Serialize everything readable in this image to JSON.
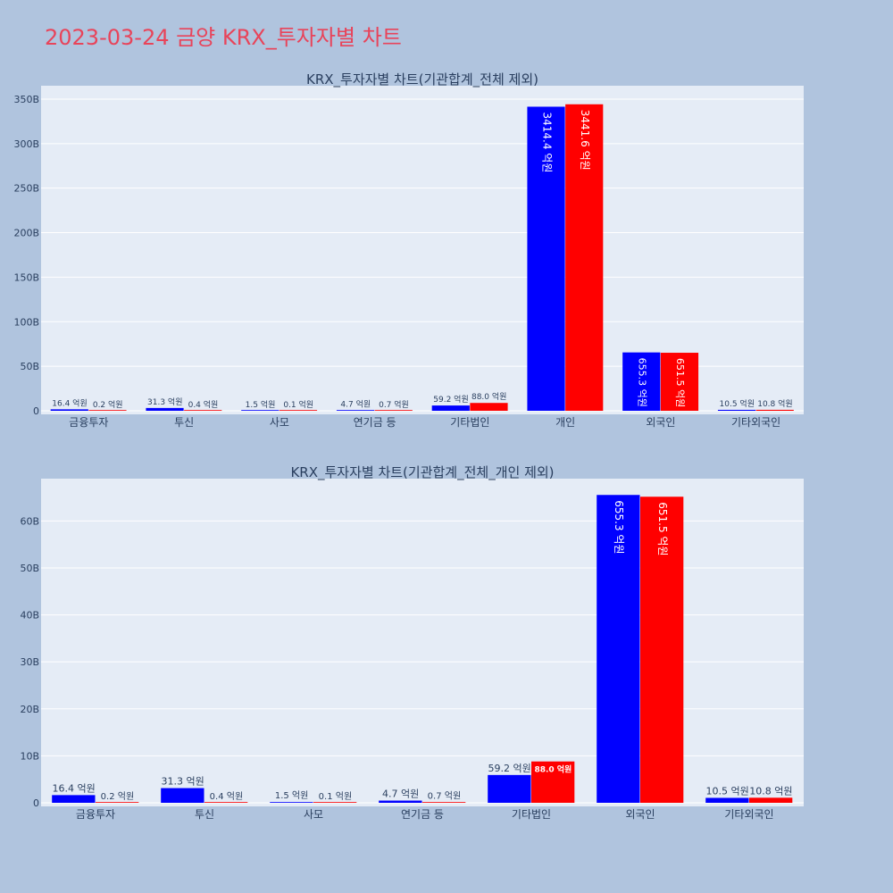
{
  "page_title": "2023-03-24 금양 KRX_투자자별 차트",
  "colors": {
    "background": "#b0c4de",
    "plot_bg": "#e5ecf6",
    "title": "#e8445a",
    "series_a": "#0000ff",
    "series_b": "#ff0000"
  },
  "chart_data": [
    {
      "type": "bar",
      "title": "KRX_투자자별 차트(기관합계_전체 제외)",
      "categories": [
        "금융투자",
        "투신",
        "사모",
        "연기금 등",
        "기타법인",
        "개인",
        "외국인",
        "기타외국인"
      ],
      "series": [
        {
          "values": [
            1.64,
            3.13,
            0.15,
            0.47,
            5.92,
            341.44,
            65.53,
            1.05
          ],
          "labels": [
            "16.4 억원",
            "31.3 억원",
            "1.5 억원",
            "4.7 억원",
            "59.2 억원",
            "3414.4 억원",
            "655.3 억원",
            "10.5 억원"
          ]
        },
        {
          "values": [
            0.02,
            0.04,
            0.01,
            0.07,
            8.8,
            344.16,
            65.15,
            1.08
          ],
          "labels": [
            "0.2 억원",
            "0.4 억원",
            "0.1 억원",
            "0.7 억원",
            "88.0 억원",
            "3441.6 억원",
            "651.5 억원",
            "10.8 억원"
          ]
        }
      ],
      "ylim": [
        0,
        365
      ],
      "yticks": [
        0,
        50,
        100,
        150,
        200,
        250,
        300,
        350
      ],
      "ytick_labels": [
        "0",
        "50B",
        "100B",
        "150B",
        "200B",
        "250B",
        "300B",
        "350B"
      ],
      "grid": true
    },
    {
      "type": "bar",
      "title": "KRX_투자자별 차트(기관합계_전체_개인 제외)",
      "categories": [
        "금융투자",
        "투신",
        "사모",
        "연기금 등",
        "기타법인",
        "외국인",
        "기타외국인"
      ],
      "series": [
        {
          "values": [
            1.64,
            3.13,
            0.15,
            0.47,
            5.92,
            65.53,
            1.05
          ],
          "labels": [
            "16.4 억원",
            "31.3 억원",
            "1.5 억원",
            "4.7 억원",
            "59.2 억원",
            "655.3 억원",
            "10.5 억원"
          ]
        },
        {
          "values": [
            0.02,
            0.04,
            0.01,
            0.07,
            8.8,
            65.15,
            1.08
          ],
          "labels": [
            "0.2 억원",
            "0.4 억원",
            "0.1 억원",
            "0.7 억원",
            "88.0 억원",
            "651.5 억원",
            "10.8 억원"
          ]
        }
      ],
      "ylim": [
        0,
        69
      ],
      "yticks": [
        0,
        10,
        20,
        30,
        40,
        50,
        60
      ],
      "ytick_labels": [
        "0",
        "10B",
        "20B",
        "30B",
        "40B",
        "50B",
        "60B"
      ],
      "grid": true
    }
  ]
}
